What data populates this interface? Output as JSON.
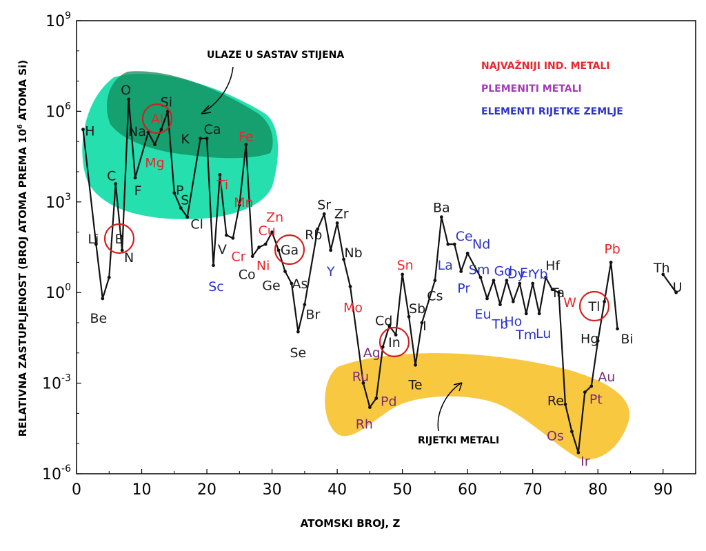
{
  "chart_data": {
    "type": "line",
    "xlabel": "ATOMSKI BROJ, Z",
    "ylabel": "RELATIVNA ZASTUPLJENOST (BROJ ATOMA PREMA 10",
    "ylabel_sup": "6",
    "ylabel_end": " ATOMA Si)",
    "xlim": [
      0,
      95
    ],
    "ylim_log10": [
      -6,
      9
    ],
    "log_scale_y": true,
    "x_ticks": [
      0,
      10,
      20,
      30,
      40,
      50,
      60,
      70,
      80,
      90
    ],
    "y_ticks": [
      {
        "base": "10",
        "exp": "9",
        "log": 9
      },
      {
        "base": "10",
        "exp": "6",
        "log": 6
      },
      {
        "base": "10",
        "exp": "3",
        "log": 3
      },
      {
        "base": "10",
        "exp": "0",
        "log": 0
      },
      {
        "base": "10",
        "exp": "-3",
        "log": -3
      },
      {
        "base": "10",
        "exp": "-6",
        "log": -6
      }
    ],
    "elements": [
      {
        "z": 1,
        "s": "H",
        "l": 5.4,
        "c": "k"
      },
      {
        "z": 3,
        "s": "Li",
        "l": 1.6,
        "c": "k"
      },
      {
        "z": 4,
        "s": "Be",
        "l": -0.2,
        "c": "k"
      },
      {
        "z": 5,
        "s": "B",
        "l": 0.5,
        "c": "k"
      },
      {
        "z": 6,
        "s": "C",
        "l": 3.6,
        "c": "k"
      },
      {
        "z": 7,
        "s": "N",
        "l": 1.4,
        "c": "k"
      },
      {
        "z": 8,
        "s": "O",
        "l": 6.4,
        "c": "k"
      },
      {
        "z": 9,
        "s": "F",
        "l": 3.8,
        "c": "k"
      },
      {
        "z": 11,
        "s": "Na",
        "l": 5.3,
        "c": "k"
      },
      {
        "z": 12,
        "s": "Mg",
        "l": 4.9,
        "c": "r"
      },
      {
        "z": 13,
        "s": "Al",
        "l": 5.4,
        "c": "r"
      },
      {
        "z": 14,
        "s": "Si",
        "l": 6.0,
        "c": "k"
      },
      {
        "z": 15,
        "s": "P",
        "l": 3.3,
        "c": "k"
      },
      {
        "z": 16,
        "s": "S",
        "l": 2.8,
        "c": "k"
      },
      {
        "z": 17,
        "s": "Cl",
        "l": 2.5,
        "c": "k"
      },
      {
        "z": 19,
        "s": "K",
        "l": 5.1,
        "c": "k"
      },
      {
        "z": 20,
        "s": "Ca",
        "l": 5.1,
        "c": "k"
      },
      {
        "z": 21,
        "s": "Sc",
        "l": 0.9,
        "c": "b"
      },
      {
        "z": 22,
        "s": "Ti",
        "l": 3.9,
        "c": "r"
      },
      {
        "z": 23,
        "s": "V",
        "l": 1.9,
        "c": "k"
      },
      {
        "z": 24,
        "s": "Cr",
        "l": 1.8,
        "c": "r"
      },
      {
        "z": 25,
        "s": "Mn",
        "l": 2.9,
        "c": "r"
      },
      {
        "z": 26,
        "s": "Fe",
        "l": 4.9,
        "c": "r"
      },
      {
        "z": 27,
        "s": "Co",
        "l": 1.2,
        "c": "k"
      },
      {
        "z": 28,
        "s": "Ni",
        "l": 1.5,
        "c": "r"
      },
      {
        "z": 29,
        "s": "Cu",
        "l": 1.6,
        "c": "r"
      },
      {
        "z": 30,
        "s": "Zn",
        "l": 2.0,
        "c": "r"
      },
      {
        "z": 31,
        "s": "Ga",
        "l": 1.4,
        "c": "k"
      },
      {
        "z": 32,
        "s": "Ge",
        "l": 0.7,
        "c": "k"
      },
      {
        "z": 33,
        "s": "As",
        "l": 0.3,
        "c": "k"
      },
      {
        "z": 34,
        "s": "Se",
        "l": -1.3,
        "c": "k"
      },
      {
        "z": 35,
        "s": "Br",
        "l": -0.4,
        "c": "k"
      },
      {
        "z": 37,
        "s": "Rb",
        "l": 2.1,
        "c": "k"
      },
      {
        "z": 38,
        "s": "Sr",
        "l": 2.6,
        "c": "k"
      },
      {
        "z": 39,
        "s": "Y",
        "l": 1.4,
        "c": "b"
      },
      {
        "z": 40,
        "s": "Zr",
        "l": 2.3,
        "c": "k"
      },
      {
        "z": 41,
        "s": "Nb",
        "l": 1.1,
        "c": "k"
      },
      {
        "z": 42,
        "s": "Mo",
        "l": 0.2,
        "c": "r"
      },
      {
        "z": 44,
        "s": "Ru",
        "l": -3.0,
        "c": "p"
      },
      {
        "z": 45,
        "s": "Rh",
        "l": -3.8,
        "c": "p"
      },
      {
        "z": 46,
        "s": "Pd",
        "l": -3.5,
        "c": "p"
      },
      {
        "z": 47,
        "s": "Ag",
        "l": -1.8,
        "c": "p"
      },
      {
        "z": 48,
        "s": "Cd",
        "l": -1.1,
        "c": "k"
      },
      {
        "z": 49,
        "s": "In",
        "l": -1.4,
        "c": "k"
      },
      {
        "z": 50,
        "s": "Sn",
        "l": 0.6,
        "c": "r"
      },
      {
        "z": 51,
        "s": "Sb",
        "l": -0.8,
        "c": "k"
      },
      {
        "z": 52,
        "s": "Te",
        "l": -2.4,
        "c": "k"
      },
      {
        "z": 53,
        "s": "I",
        "l": -1.0,
        "c": "k"
      },
      {
        "z": 55,
        "s": "Cs",
        "l": 0.4,
        "c": "k"
      },
      {
        "z": 56,
        "s": "Ba",
        "l": 2.5,
        "c": "k"
      },
      {
        "z": 57,
        "s": "La",
        "l": 1.6,
        "c": "b"
      },
      {
        "z": 58,
        "s": "Ce",
        "l": 1.6,
        "c": "b"
      },
      {
        "z": 59,
        "s": "Pr",
        "l": 0.7,
        "c": "b"
      },
      {
        "z": 60,
        "s": "Nd",
        "l": 1.3,
        "c": "b"
      },
      {
        "z": 62,
        "s": "Sm",
        "l": 0.5,
        "c": "b"
      },
      {
        "z": 63,
        "s": "Eu",
        "l": -0.2,
        "c": "b"
      },
      {
        "z": 64,
        "s": "Gd",
        "l": 0.4,
        "c": "b"
      },
      {
        "z": 65,
        "s": "Tb",
        "l": -0.4,
        "c": "b"
      },
      {
        "z": 66,
        "s": "Dy",
        "l": 0.4,
        "c": "b"
      },
      {
        "z": 67,
        "s": "Ho",
        "l": -0.3,
        "c": "b"
      },
      {
        "z": 68,
        "s": "Er",
        "l": 0.3,
        "c": "b"
      },
      {
        "z": 69,
        "s": "Tm",
        "l": -0.7,
        "c": "b"
      },
      {
        "z": 70,
        "s": "Yb",
        "l": 0.3,
        "c": "b"
      },
      {
        "z": 71,
        "s": "Lu",
        "l": -0.7,
        "c": "b"
      },
      {
        "z": 72,
        "s": "Hf",
        "l": 0.5,
        "c": "k"
      },
      {
        "z": 73,
        "s": "Ta",
        "l": 0.1,
        "c": "k"
      },
      {
        "z": 74,
        "s": "W",
        "l": 0.0,
        "c": "r"
      },
      {
        "z": 75,
        "s": "Re",
        "l": -3.7,
        "c": "k"
      },
      {
        "z": 76,
        "s": "Os",
        "l": -4.6,
        "c": "p"
      },
      {
        "z": 77,
        "s": "Ir",
        "l": -5.3,
        "c": "p"
      },
      {
        "z": 78,
        "s": "Pt",
        "l": -3.3,
        "c": "p"
      },
      {
        "z": 79,
        "s": "Au",
        "l": -3.1,
        "c": "p"
      },
      {
        "z": 80,
        "s": "Hg",
        "l": -1.6,
        "c": "k"
      },
      {
        "z": 81,
        "s": "Tl",
        "l": -0.3,
        "c": "k"
      },
      {
        "z": 82,
        "s": "Pb",
        "l": 1.0,
        "c": "r"
      },
      {
        "z": 83,
        "s": "Bi",
        "l": -1.2,
        "c": "k"
      },
      {
        "z": 90,
        "s": "Th",
        "l": 0.6,
        "c": "k"
      },
      {
        "z": 92,
        "s": "U",
        "l": 0.0,
        "c": "k"
      }
    ],
    "circled": [
      "B",
      "Al",
      "Ga",
      "In",
      "Tl"
    ],
    "colors": {
      "k": "#1a1a1a",
      "r": "#e8262a",
      "b": "#2c34c8",
      "p": "#7a2a7a"
    },
    "legend": [
      {
        "label": "NAJVAŽNIJI IND. METALI",
        "color": "#e8262a"
      },
      {
        "label": "PLEMENITI METALI",
        "color": "#a23cb3"
      },
      {
        "label": "ELEMENTI RIJETKE ZEMLJE",
        "color": "#2c34c8"
      }
    ],
    "annotations": {
      "rock": "ULAZE U SASTAV STIJENA",
      "rare": "RIJETKI METALI"
    }
  }
}
